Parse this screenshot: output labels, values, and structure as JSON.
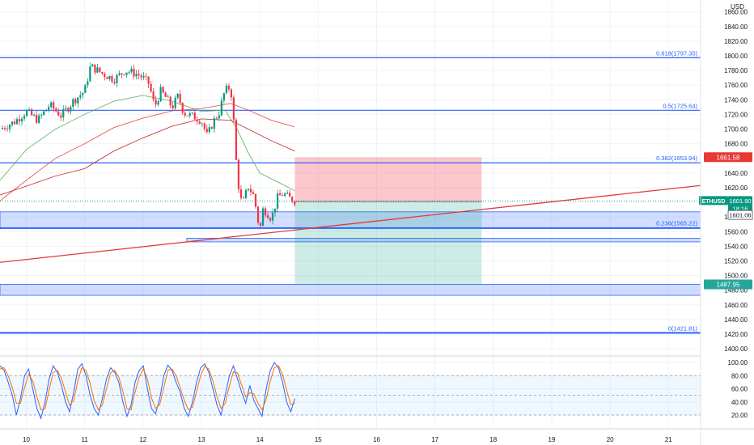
{
  "currency": "USD",
  "chart_data": [
    {
      "type": "candlestick",
      "symbol": "ETHUSD",
      "y_unit": "USD",
      "ylim": [
        1388,
        1872
      ],
      "xlim": [
        9.55,
        21.55
      ],
      "x_ticks": [
        "10",
        "11",
        "12",
        "13",
        "14",
        "15",
        "16",
        "17",
        "18",
        "19",
        "20",
        "21"
      ],
      "y_ticks": [
        "1400.00",
        "1420.00",
        "1440.00",
        "1460.00",
        "1480.00",
        "1500.00",
        "1520.00",
        "1540.00",
        "1560.00",
        "1580.00",
        "1600.00",
        "1620.00",
        "1640.00",
        "1660.00",
        "1680.00",
        "1700.00",
        "1720.00",
        "1740.00",
        "1760.00",
        "1780.00",
        "1800.00",
        "1820.00",
        "1840.00",
        "1860.00"
      ],
      "grid": true,
      "fib_levels": [
        {
          "label": "0.618(1797.35)",
          "value": 1797.35
        },
        {
          "label": "0.5(1725.64)",
          "value": 1725.64
        },
        {
          "label": "0.382(1653.94)",
          "value": 1653.94
        },
        {
          "label": "0.236(1565.22)",
          "value": 1565.22
        },
        {
          "label": "0(1421.81)",
          "value": 1421.81
        }
      ],
      "price_badges": [
        {
          "label": "1661.58",
          "value": 1661.58,
          "color": "#e53935"
        },
        {
          "label": "1487.95",
          "value": 1487.95,
          "color": "#26a69a"
        }
      ],
      "last_price": {
        "symbol": "ETHUSD",
        "price": "1601.90",
        "countdown": "18:16",
        "value": 1601.9
      },
      "position_ref": {
        "label": "1601.06",
        "value": 1601.06
      },
      "zones": [
        {
          "from": 1564,
          "to": 1587,
          "x_from": 9.55,
          "x_to": 21.55
        },
        {
          "from": 1546,
          "to": 1551,
          "x_from": 12.75,
          "x_to": 21.55
        },
        {
          "from": 1473,
          "to": 1488,
          "x_from": 9.55,
          "x_to": 21.55
        }
      ],
      "trend_line": {
        "x1": 9.55,
        "y1": 1518,
        "x2": 21.55,
        "y2": 1623
      },
      "long_position": {
        "x_from": 14.6,
        "x_to": 17.8,
        "entry": 1601.06,
        "stop": 1661.58,
        "target": 1487.95
      },
      "moving_averages": [
        {
          "color": "#4caf50",
          "points": [
            [
              9.55,
              1630
            ],
            [
              10.0,
              1672
            ],
            [
              10.5,
              1700
            ],
            [
              11.0,
              1720
            ],
            [
              11.5,
              1738
            ],
            [
              12.0,
              1746
            ],
            [
              12.5,
              1738
            ],
            [
              13.0,
              1724
            ],
            [
              13.4,
              1726
            ],
            [
              13.6,
              1702
            ],
            [
              13.8,
              1668
            ],
            [
              14.0,
              1640
            ],
            [
              14.3,
              1628
            ],
            [
              14.6,
              1616
            ]
          ]
        },
        {
          "color": "#e53935",
          "points": [
            [
              9.55,
              1602
            ],
            [
              10.0,
              1630
            ],
            [
              10.5,
              1660
            ],
            [
              11.0,
              1680
            ],
            [
              11.5,
              1702
            ],
            [
              12.0,
              1715
            ],
            [
              12.5,
              1725
            ],
            [
              13.0,
              1728
            ],
            [
              13.5,
              1735
            ],
            [
              13.8,
              1726
            ],
            [
              14.2,
              1712
            ],
            [
              14.6,
              1703
            ]
          ]
        },
        {
          "color": "#b71c1c",
          "points": [
            [
              9.55,
              1610
            ],
            [
              10.0,
              1622
            ],
            [
              10.5,
              1636
            ],
            [
              11.0,
              1646
            ],
            [
              11.5,
              1670
            ],
            [
              12.0,
              1688
            ],
            [
              12.5,
              1704
            ],
            [
              13.0,
              1714
            ],
            [
              13.5,
              1712
            ],
            [
              13.8,
              1700
            ],
            [
              14.2,
              1684
            ],
            [
              14.6,
              1670
            ]
          ]
        }
      ],
      "close_path": [
        [
          9.55,
          1700
        ],
        [
          9.8,
          1710
        ],
        [
          10.0,
          1724
        ],
        [
          10.2,
          1712
        ],
        [
          10.4,
          1733
        ],
        [
          10.6,
          1718
        ],
        [
          10.8,
          1738
        ],
        [
          11.0,
          1752
        ],
        [
          11.1,
          1786
        ],
        [
          11.3,
          1776
        ],
        [
          11.5,
          1768
        ],
        [
          11.7,
          1780
        ],
        [
          11.9,
          1775
        ],
        [
          12.0,
          1770
        ],
        [
          12.1,
          1762
        ],
        [
          12.2,
          1730
        ],
        [
          12.3,
          1752
        ],
        [
          12.4,
          1742
        ],
        [
          12.5,
          1730
        ],
        [
          12.6,
          1745
        ],
        [
          12.7,
          1722
        ],
        [
          12.9,
          1716
        ],
        [
          13.0,
          1712
        ],
        [
          13.1,
          1690
        ],
        [
          13.2,
          1710
        ],
        [
          13.3,
          1722
        ],
        [
          13.4,
          1752
        ],
        [
          13.5,
          1758
        ],
        [
          13.55,
          1714
        ],
        [
          13.6,
          1650
        ],
        [
          13.65,
          1612
        ],
        [
          13.7,
          1596
        ],
        [
          13.8,
          1622
        ],
        [
          13.9,
          1608
        ],
        [
          14.0,
          1560
        ],
        [
          14.05,
          1590
        ],
        [
          14.1,
          1588
        ],
        [
          14.2,
          1578
        ],
        [
          14.3,
          1606
        ],
        [
          14.4,
          1612
        ],
        [
          14.5,
          1606
        ],
        [
          14.6,
          1602
        ]
      ]
    },
    {
      "type": "line",
      "name": "stochastic",
      "ylim": [
        13,
        110
      ],
      "y_ticks": [
        "20.00",
        "40.00",
        "60.00",
        "80.00",
        "100.00"
      ],
      "band": [
        20,
        80
      ],
      "mid": 50,
      "series": [
        {
          "color": "#2962ff",
          "values": [
            95,
            88,
            70,
            50,
            20,
            45,
            80,
            90,
            60,
            30,
            15,
            40,
            75,
            95,
            85,
            65,
            40,
            25,
            55,
            90,
            98,
            80,
            50,
            30,
            20,
            45,
            75,
            92,
            85,
            70,
            40,
            18,
            35,
            70,
            88,
            95,
            60,
            30,
            22,
            45,
            80,
            96,
            88,
            70,
            55,
            30,
            18,
            40,
            70,
            92,
            98,
            85,
            60,
            35,
            20,
            50,
            80,
            95,
            75,
            55,
            38,
            65,
            42,
            30,
            18,
            60,
            88,
            100,
            92,
            70,
            40,
            25,
            45
          ]
        },
        {
          "color": "#ff6d00",
          "values": [
            90,
            92,
            80,
            62,
            38,
            38,
            62,
            82,
            72,
            48,
            28,
            30,
            58,
            85,
            88,
            76,
            55,
            35,
            42,
            72,
            92,
            88,
            68,
            42,
            28,
            35,
            60,
            84,
            88,
            78,
            56,
            30,
            28,
            55,
            78,
            90,
            75,
            46,
            30,
            36,
            62,
            88,
            90,
            80,
            62,
            42,
            28,
            32,
            56,
            80,
            94,
            90,
            72,
            48,
            30,
            38,
            64,
            86,
            84,
            66,
            48,
            54,
            52,
            38,
            28,
            44,
            72,
            92,
            95,
            82,
            58,
            36,
            38
          ]
        }
      ]
    }
  ]
}
